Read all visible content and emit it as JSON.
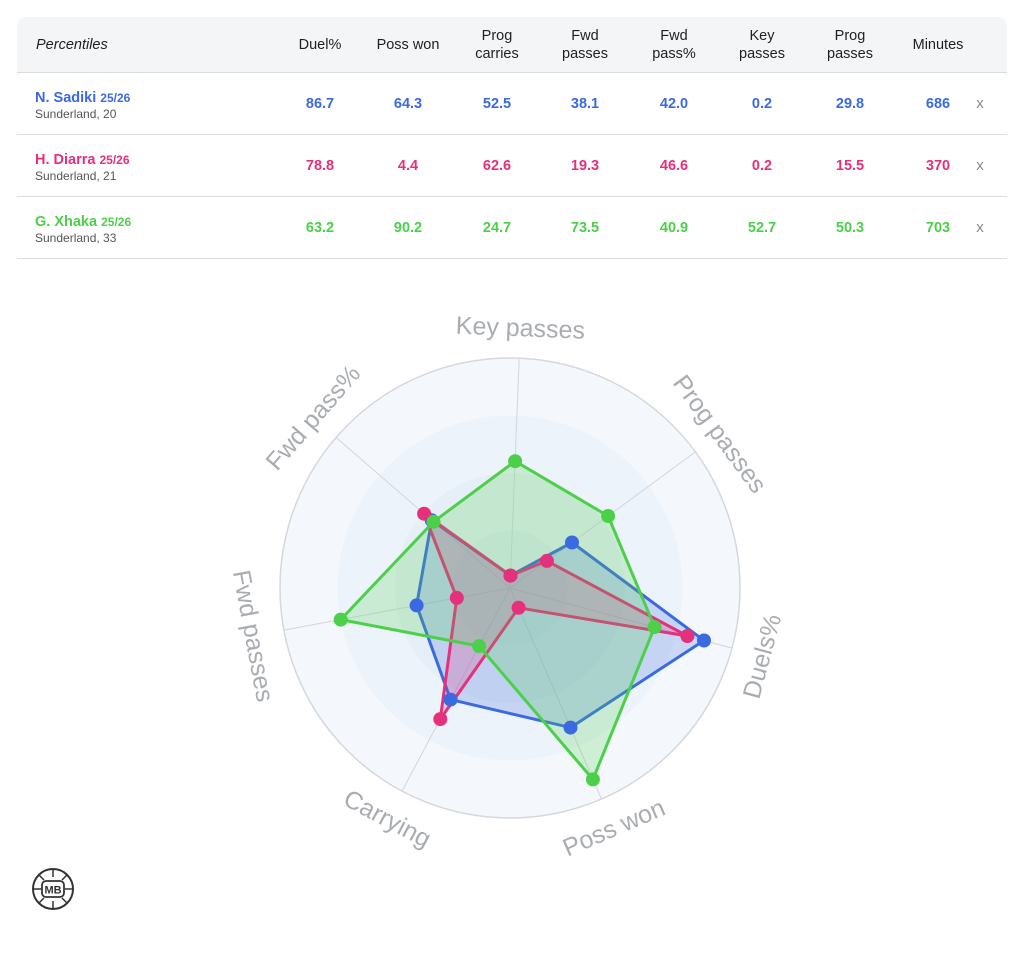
{
  "table": {
    "header_label": "Percentiles",
    "columns": [
      {
        "key": "duel",
        "label_lines": [
          "Duel%"
        ]
      },
      {
        "key": "poss_won",
        "label_lines": [
          "Poss won"
        ]
      },
      {
        "key": "prog_carries",
        "label_lines": [
          "Prog",
          "carries"
        ]
      },
      {
        "key": "fwd_passes",
        "label_lines": [
          "Fwd",
          "passes"
        ]
      },
      {
        "key": "fwd_pass_pct",
        "label_lines": [
          "Fwd",
          "pass%"
        ]
      },
      {
        "key": "key_passes",
        "label_lines": [
          "Key",
          "passes"
        ]
      },
      {
        "key": "prog_passes",
        "label_lines": [
          "Prog",
          "passes"
        ]
      },
      {
        "key": "minutes",
        "label_lines": [
          "Minutes"
        ]
      }
    ],
    "remove_label": "x",
    "players": [
      {
        "name": "N. Sadiki",
        "season": "25/26",
        "team_line": "Sunderland, 20",
        "color": "#3b6ae0",
        "values": [
          "86.7",
          "64.3",
          "52.5",
          "38.1",
          "42.0",
          "0.2",
          "29.8",
          "686"
        ]
      },
      {
        "name": "H. Diarra",
        "season": "25/26",
        "team_line": "Sunderland, 21",
        "color": "#e5307b",
        "values": [
          "78.8",
          "4.4",
          "62.6",
          "19.3",
          "46.6",
          "0.2",
          "15.5",
          "370"
        ]
      },
      {
        "name": "G. Xhaka",
        "season": "25/26",
        "team_line": "Sunderland, 33",
        "color": "#4cd04a",
        "values": [
          "63.2",
          "90.2",
          "24.7",
          "73.5",
          "40.9",
          "52.7",
          "50.3",
          "703"
        ]
      }
    ]
  },
  "chart_data": {
    "type": "radar",
    "axes": [
      "Key passes",
      "Prog passes",
      "Duels%",
      "Poss won",
      "Carrying",
      "Fwd passes",
      "Fwd pass%"
    ],
    "range": [
      0,
      100
    ],
    "rings": 4,
    "series": [
      {
        "name": "N. Sadiki",
        "color": "#3b6ae0",
        "values": [
          0.2,
          29.8,
          86.7,
          64.3,
          52.5,
          38.1,
          42.0
        ]
      },
      {
        "name": "H. Diarra",
        "color": "#e5307b",
        "values": [
          0.2,
          15.5,
          78.8,
          4.4,
          62.6,
          19.3,
          46.6
        ]
      },
      {
        "name": "G. Xhaka",
        "color": "#4cd04a",
        "values": [
          52.7,
          50.3,
          63.2,
          90.2,
          24.7,
          73.5,
          40.9
        ]
      }
    ]
  },
  "logo": {
    "text": "MB"
  }
}
